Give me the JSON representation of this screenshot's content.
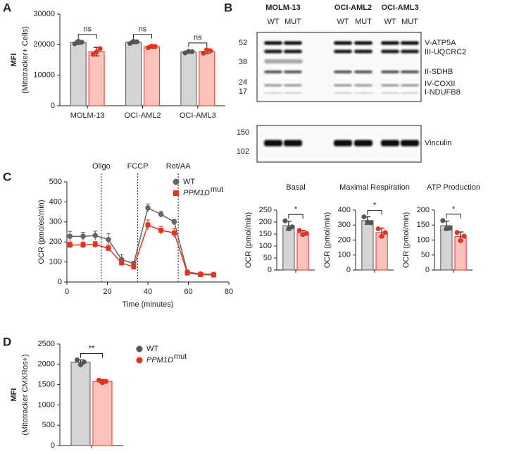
{
  "blot": {
    "panel": "B",
    "cell_lines": [
      "MOLM-13",
      "OCI-AML2",
      "OCI-AML3"
    ],
    "lanes": [
      "WT",
      "MUT"
    ],
    "markers": [
      52,
      38,
      24,
      17,
      150,
      102
    ],
    "proteins": [
      "V-ATP5A",
      "III-UQCRC2",
      "II-SDHB",
      "IV-COXII",
      "I-NDUFB8",
      "Vinculin"
    ]
  },
  "chart_data": [
    {
      "type": "bar",
      "panel": "A",
      "ylabel": [
        "MFI",
        "(Mitotracker+ Cells)"
      ],
      "categories": [
        "MOLM-13",
        "OCI-AML2",
        "OCI-AML3"
      ],
      "series": [
        {
          "color": "#555555",
          "fill": "#d4d4d4",
          "values": [
            20700,
            20800,
            17600
          ],
          "errors": [
            600,
            500,
            400
          ],
          "points": [
            [
              20300,
              21100,
              20800
            ],
            [
              20400,
              21100,
              20900
            ],
            [
              17300,
              17800,
              17700
            ]
          ]
        },
        {
          "color": "#e8321e",
          "fill": "#fbc3bb",
          "values": [
            17700,
            19300,
            17800
          ],
          "errors": [
            1400,
            500,
            700
          ],
          "points": [
            [
              16800,
              17600,
              18700
            ],
            [
              19000,
              19500,
              19400
            ],
            [
              17200,
              18300,
              18000
            ]
          ]
        }
      ],
      "significance": [
        "ns",
        "ns",
        "ns"
      ],
      "ylim": [
        0,
        30000
      ],
      "yticks": [
        0,
        10000,
        20000,
        30000
      ]
    },
    {
      "type": "line",
      "panel": "C",
      "xlabel": "Time (minutes)",
      "ylabel": "OCR (pmoles/min)",
      "x": [
        1.5,
        8,
        14,
        20.5,
        27,
        33,
        40,
        46.5,
        53,
        59.5,
        66,
        72.5
      ],
      "series": [
        {
          "name": "WT",
          "color": "#666666",
          "marker": "circle",
          "values": [
            228,
            228,
            232,
            212,
            112,
            92,
            370,
            338,
            300,
            50,
            40,
            38
          ],
          "errors": [
            25,
            20,
            22,
            30,
            25,
            12,
            20,
            15,
            12,
            8,
            6,
            6
          ]
        },
        {
          "name": "PPM1D",
          "name_sup": "mut",
          "color": "#e8321e",
          "marker": "square",
          "values": [
            185,
            185,
            187,
            168,
            95,
            75,
            285,
            258,
            245,
            45,
            37,
            35
          ],
          "errors": [
            15,
            15,
            15,
            15,
            12,
            10,
            25,
            20,
            22,
            8,
            5,
            5
          ]
        }
      ],
      "injections": [
        {
          "label": "Oligo",
          "x": 17
        },
        {
          "label": "FCCP",
          "x": 35
        },
        {
          "label": "Rot/AA",
          "x": 55
        }
      ],
      "xlim": [
        0,
        80
      ],
      "xticks": [
        0,
        20,
        40,
        60,
        80
      ],
      "ylim": [
        0,
        500
      ],
      "yticks": [
        0,
        100,
        200,
        300,
        400,
        500
      ],
      "legend": "upper right"
    },
    {
      "type": "bar",
      "title": "Basal",
      "ylabel": "OCR (pmol/min)",
      "series": [
        {
          "color": "#555555",
          "fill": "#d4d4d4",
          "values": [
            185
          ],
          "errors": [
            18
          ],
          "points": [
            [
              205,
              172,
              180
            ]
          ]
        },
        {
          "color": "#e8321e",
          "fill": "#fbc3bb",
          "values": [
            155
          ],
          "errors": [
            10
          ],
          "points": [
            [
              165,
              148,
              153
            ]
          ]
        }
      ],
      "significance": [
        "*"
      ],
      "ylim": [
        0,
        250
      ],
      "yticks": [
        0,
        50,
        100,
        150,
        200,
        250
      ]
    },
    {
      "type": "bar",
      "title": "Maximal Respiration",
      "ylabel": "OCR (pmol/min)",
      "series": [
        {
          "color": "#555555",
          "fill": "#d4d4d4",
          "values": [
            330
          ],
          "errors": [
            25
          ],
          "points": [
            [
              355,
              320,
              315
            ]
          ]
        },
        {
          "color": "#e8321e",
          "fill": "#fbc3bb",
          "values": [
            250
          ],
          "errors": [
            30
          ],
          "points": [
            [
              275,
              225,
              250
            ]
          ]
        }
      ],
      "significance": [
        "*"
      ],
      "ylim": [
        0,
        400
      ],
      "yticks": [
        0,
        100,
        200,
        300,
        400
      ]
    },
    {
      "type": "bar",
      "title": "ATP Production",
      "ylabel": "OCR (pmol/min)",
      "series": [
        {
          "color": "#555555",
          "fill": "#d4d4d4",
          "values": [
            148
          ],
          "errors": [
            15
          ],
          "points": [
            [
              165,
              138,
              140
            ]
          ]
        },
        {
          "color": "#e8321e",
          "fill": "#fbc3bb",
          "values": [
            112
          ],
          "errors": [
            15
          ],
          "points": [
            [
              125,
              98,
              113
            ]
          ]
        }
      ],
      "significance": [
        "*"
      ],
      "ylim": [
        0,
        200
      ],
      "yticks": [
        0,
        50,
        100,
        150,
        200
      ]
    },
    {
      "type": "bar",
      "panel": "D",
      "ylabel": [
        "MFI",
        "(Mitotracker CMXRos+)"
      ],
      "series": [
        {
          "name": "WT",
          "color": "#555555",
          "fill": "#d4d4d4",
          "marker": "circle",
          "values": [
            2050
          ],
          "errors": [
            60
          ],
          "points": [
            [
              2110,
              1990,
              2060
            ]
          ]
        },
        {
          "name": "PPM1D",
          "name_sup": "mut",
          "color": "#e8321e",
          "fill": "#fbc3bb",
          "marker": "circle",
          "values": [
            1580
          ],
          "errors": [
            40
          ],
          "points": [
            [
              1610,
              1550,
              1580
            ]
          ]
        }
      ],
      "significance": [
        "**"
      ],
      "ylim": [
        0,
        2500
      ],
      "yticks": [
        0,
        500,
        1000,
        1500,
        2000,
        2500
      ],
      "legend": "right"
    }
  ]
}
